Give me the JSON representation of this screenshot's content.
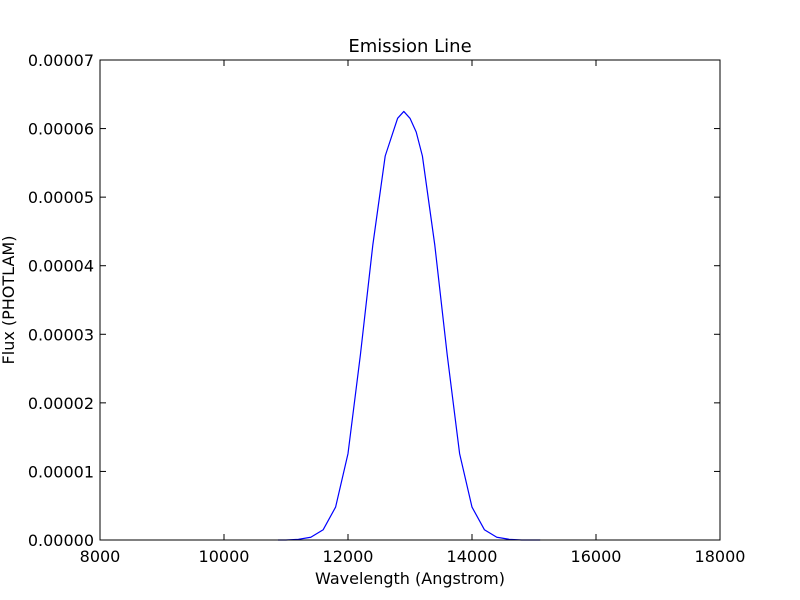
{
  "chart_data": {
    "type": "line",
    "title": "Emission Line",
    "xlabel": "Wavelength (Angstrom)",
    "ylabel": "Flux (PHOTLAM)",
    "xlim": [
      8000,
      18000
    ],
    "ylim": [
      0,
      7e-05
    ],
    "grid": false,
    "legend": "none",
    "x_ticks": [
      "8000",
      "10000",
      "12000",
      "14000",
      "16000",
      "18000"
    ],
    "y_ticks": [
      "0.00000",
      "0.00001",
      "0.00002",
      "0.00003",
      "0.00004",
      "0.00005",
      "0.00006",
      "0.00007"
    ],
    "series": [
      {
        "color": "#0000ff",
        "x": [
          10870,
          11000,
          11200,
          11400,
          11600,
          11800,
          12000,
          12200,
          12400,
          12600,
          12800,
          12900,
          13000,
          13100,
          13200,
          13400,
          13600,
          13800,
          14000,
          14200,
          14400,
          14600,
          14800,
          15000,
          15100
        ],
        "y": [
          0.0,
          0.0,
          1e-07,
          4e-07,
          1.5e-06,
          4.8e-06,
          1.26e-05,
          2.7e-05,
          4.3e-05,
          5.6e-05,
          6.15e-05,
          6.25e-05,
          6.15e-05,
          5.95e-05,
          5.6e-05,
          4.3e-05,
          2.7e-05,
          1.26e-05,
          4.8e-06,
          1.5e-06,
          4e-07,
          1e-07,
          0.0,
          0.0,
          0.0
        ]
      }
    ]
  }
}
